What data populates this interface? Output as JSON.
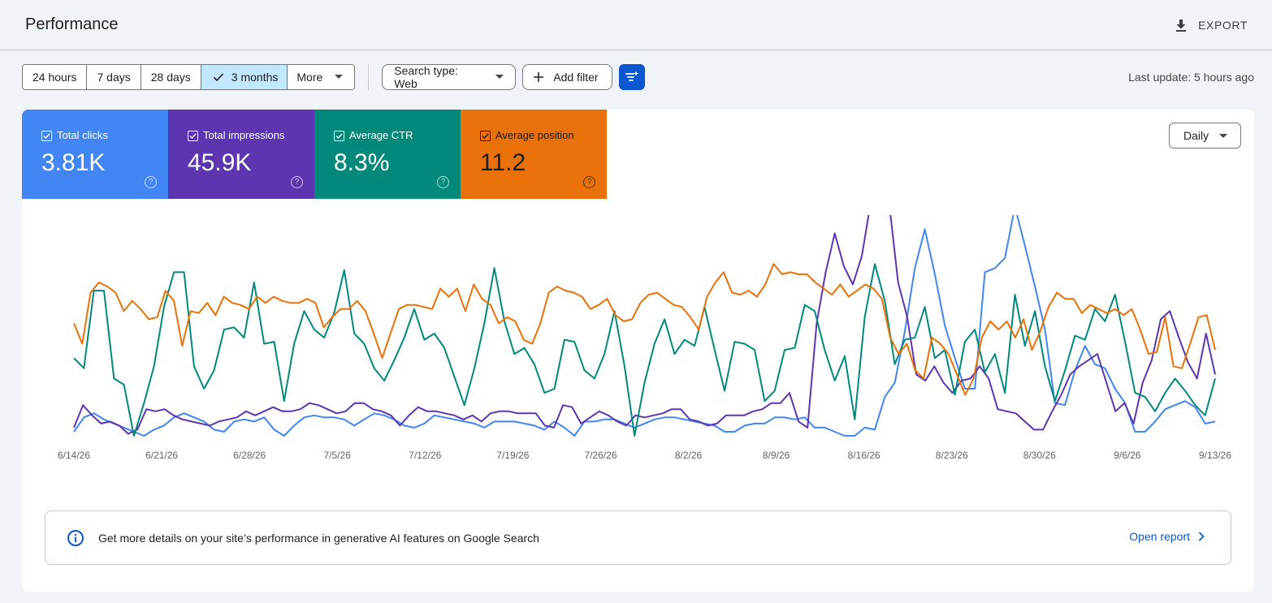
{
  "header": {
    "title": "Performance",
    "export_label": "EXPORT"
  },
  "toolbar": {
    "ranges": [
      "24 hours",
      "7 days",
      "28 days",
      "3 months"
    ],
    "selected_range": "3 months",
    "more_label": "More",
    "search_type": "Search type: Web",
    "add_filter": "Add filter",
    "last_update": "Last update: 5 hours ago"
  },
  "metrics": [
    {
      "label": "Total clicks",
      "value": "3.81K",
      "color": "#4285f4",
      "checked": true
    },
    {
      "label": "Total impressions",
      "value": "45.9K",
      "color": "#5e35b1",
      "checked": true
    },
    {
      "label": "Average CTR",
      "value": "8.3%",
      "color": "#00897b",
      "checked": true
    },
    {
      "label": "Average position",
      "value": "11.2",
      "color": "#e8710a",
      "checked": true
    }
  ],
  "granularity": "Daily",
  "chart_data": {
    "type": "line",
    "x_tick_labels": [
      "6/14/26",
      "6/21/26",
      "6/28/26",
      "7/5/26",
      "7/12/26",
      "7/19/26",
      "7/26/26",
      "8/2/26",
      "8/9/26",
      "8/16/26",
      "8/23/26",
      "8/30/26",
      "9/6/26",
      "9/13/26"
    ],
    "y_scale": "independent per series (no y axis shown); values are relative heights 0-100",
    "series": [
      {
        "name": "Total clicks",
        "color": "#4285f4",
        "values": [
          2,
          9,
          11,
          8,
          6,
          4,
          2,
          0,
          3,
          5,
          9,
          11,
          9,
          7,
          3,
          2,
          7,
          8,
          7,
          9,
          3,
          0,
          5,
          9,
          10,
          9,
          9,
          8,
          5,
          8,
          11,
          10,
          8,
          5,
          4,
          6,
          10,
          9,
          8,
          7,
          6,
          4,
          7,
          7,
          7,
          6,
          5,
          3,
          7,
          4,
          0,
          7,
          7,
          8,
          8,
          6,
          4,
          6,
          8,
          9,
          9,
          8,
          7,
          6,
          5,
          2,
          2,
          5,
          6,
          6,
          9,
          9,
          8,
          9,
          4,
          4,
          2,
          0,
          0,
          4,
          3,
          19,
          26,
          51,
          82,
          101,
          79,
          54,
          38,
          23,
          23,
          80,
          82,
          87,
          112,
          93,
          73,
          52,
          16,
          15,
          32,
          44,
          35,
          33,
          23,
          16,
          2,
          2,
          7,
          13,
          15,
          17,
          14,
          6,
          7
        ]
      },
      {
        "name": "Total impressions",
        "color": "#5e35b1",
        "values": [
          4,
          15,
          10,
          6,
          7,
          5,
          1,
          3,
          13,
          12,
          13,
          10,
          8,
          7,
          6,
          5,
          7,
          8,
          9,
          12,
          10,
          12,
          14,
          12,
          12,
          13,
          16,
          15,
          13,
          11,
          12,
          16,
          16,
          13,
          12,
          10,
          5,
          10,
          14,
          12,
          12,
          11,
          10,
          8,
          10,
          7,
          11,
          12,
          12,
          11,
          11,
          11,
          5,
          4,
          15,
          14,
          6,
          9,
          12,
          10,
          7,
          5,
          10,
          9,
          10,
          11,
          13,
          13,
          8,
          7,
          5,
          6,
          10,
          10,
          10,
          12,
          13,
          16,
          16,
          21,
          7,
          4,
          55,
          80,
          99,
          83,
          74,
          88,
          115,
          125,
          114,
          75,
          58,
          30,
          27,
          34,
          26,
          21,
          27,
          28,
          34,
          28,
          13,
          12,
          11,
          7,
          3,
          3,
          12,
          20,
          30,
          34,
          37,
          40,
          26,
          12,
          16,
          6,
          26,
          37,
          57,
          61,
          48,
          36,
          28,
          50,
          30
        ]
      },
      {
        "name": "Average CTR",
        "color": "#00897b",
        "values": [
          38,
          33,
          71,
          71,
          28,
          25,
          0,
          16,
          34,
          63,
          80,
          80,
          34,
          23,
          32,
          52,
          53,
          48,
          75,
          45,
          46,
          17,
          45,
          61,
          52,
          48,
          60,
          81,
          50,
          45,
          33,
          27,
          37,
          48,
          62,
          47,
          50,
          43,
          29,
          15,
          33,
          55,
          82,
          56,
          40,
          43,
          35,
          21,
          23,
          47,
          46,
          32,
          28,
          40,
          61,
          34,
          0,
          26,
          45,
          57,
          40,
          47,
          44,
          63,
          42,
          22,
          46,
          45,
          42,
          17,
          22,
          42,
          43,
          64,
          61,
          42,
          27,
          39,
          8,
          58,
          84,
          66,
          35,
          47,
          48,
          63,
          38,
          42,
          20,
          46,
          52,
          31,
          40,
          21,
          69,
          44,
          61,
          34,
          17,
          32,
          49,
          47,
          62,
          56,
          69,
          46,
          21,
          19,
          12,
          21,
          28,
          22,
          15,
          10,
          28
        ]
      },
      {
        "name": "Average position",
        "color": "#e8710a",
        "values": [
          55,
          45,
          70,
          75,
          73,
          70,
          61,
          66,
          62,
          57,
          58,
          71,
          66,
          44,
          61,
          60,
          65,
          59,
          68,
          65,
          64,
          62,
          68,
          65,
          68,
          66,
          65,
          65,
          67,
          65,
          53,
          58,
          62,
          62,
          66,
          61,
          50,
          38,
          50,
          62,
          64,
          64,
          63,
          62,
          72,
          68,
          72,
          61,
          74,
          67,
          64,
          55,
          58,
          56,
          47,
          45,
          55,
          70,
          73,
          71,
          70,
          68,
          62,
          64,
          67,
          59,
          56,
          57,
          65,
          69,
          70,
          67,
          64,
          63,
          58,
          52,
          68,
          75,
          80,
          70,
          69,
          71,
          68,
          74,
          84,
          79,
          80,
          79,
          79,
          75,
          72,
          69,
          74,
          68,
          71,
          74,
          72,
          67,
          48,
          40,
          45,
          32,
          28,
          48,
          45,
          40,
          30,
          20,
          28,
          48,
          56,
          52,
          56,
          48,
          57,
          42,
          51,
          63,
          70,
          67,
          67,
          60,
          64,
          62,
          60,
          62,
          59,
          62,
          52,
          40,
          41,
          58,
          34,
          33,
          45,
          58,
          59,
          42
        ]
      }
    ]
  },
  "info": {
    "text": "Get more details on your site’s performance in generative AI features on Google Search",
    "link": "Open report"
  }
}
